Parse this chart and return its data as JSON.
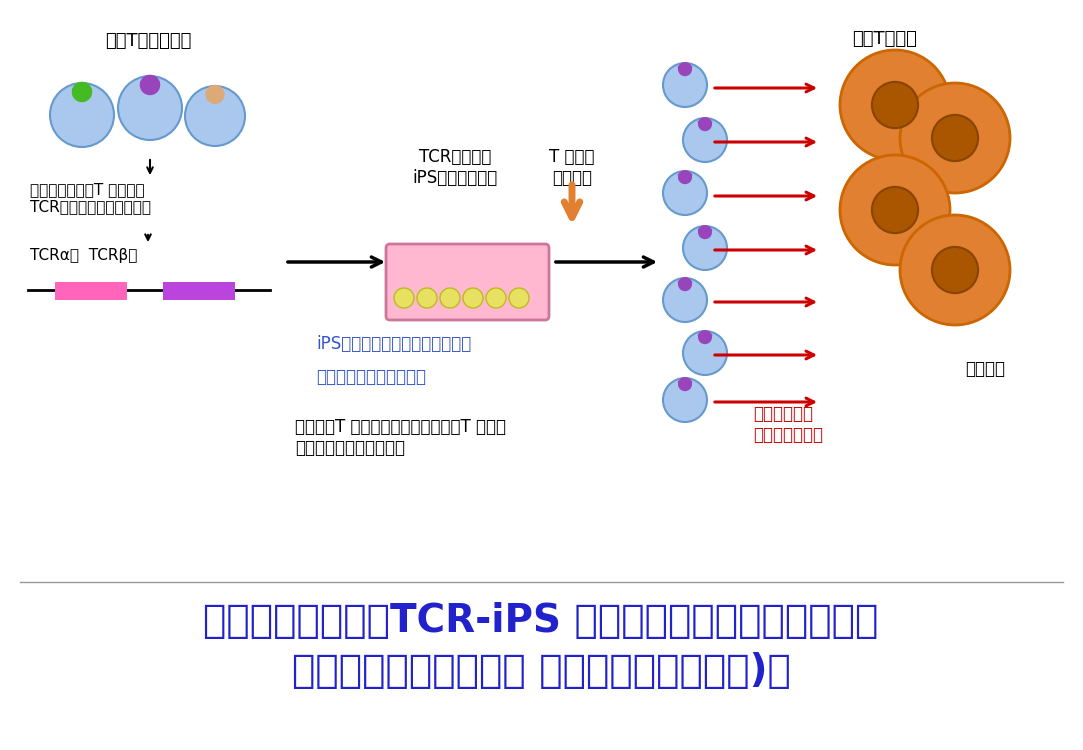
{
  "bg_color": "#ffffff",
  "title_line1": "・がんに反応するTCR-iPS 細胞を用いたがん免疫療法・",
  "title_line2": "京都大学再生研・河本 宏先生との共同研究)・",
  "title_color": "#2222cc",
  "title_fontsize": 28,
  "left_label": "成熟T細胞集団・",
  "left_label2": "がんに反応するT 細胞から\nTCR遺伝子をクローニング",
  "tcr_label": "TCRα鎖  TCRβ鎖",
  "mid_label1": "TCR遺伝子を\niPS細胞へ導入・",
  "mid_label2": "T 細胞へ\n分化誘導",
  "right_label": "成熟T細胞・",
  "right_note1": "単一の特異性\nをもつ細胞集団",
  "cancer_label": "がん細胞",
  "ips_note1": "iPS細胞段階で無限に増やせる・",
  "ips_note2": "遺伝子操作もしやすい・",
  "final_note": "もう一度T 細胞に戻すと、すべてのT 細胞が\nがん細胞を攻撃できる・",
  "cell_blue": "#aac8ee",
  "cell_blue_edge": "#6699cc",
  "orange_color": "#e08030",
  "orange_inner": "#aa5500",
  "pink_dish": "#ffb8d0",
  "yellow_cell": "#e8e060",
  "purple_receptor": "#9944bb",
  "green_receptor": "#44bb22",
  "tan_receptor": "#ddaa77",
  "pink_bar": "#ff66bb",
  "purple_bar": "#bb44dd",
  "red_arrow": "#cc0000",
  "note_blue": "#3355cc",
  "black": "#000000",
  "gray_line": "#999999"
}
